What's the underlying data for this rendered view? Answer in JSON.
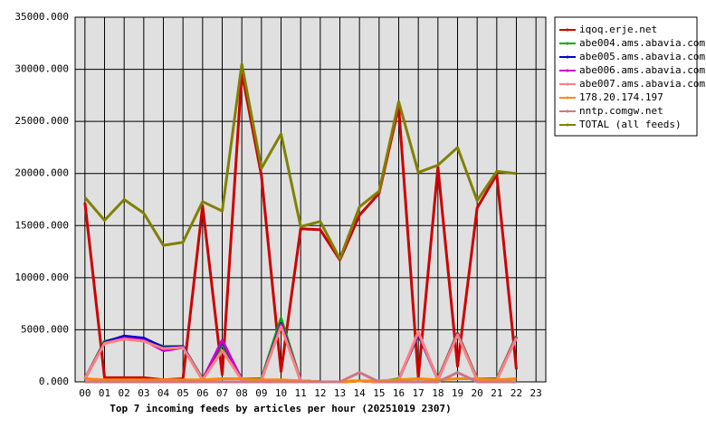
{
  "chart_data": {
    "type": "line",
    "title": "Top 7 incoming feeds by articles per hour (20251019 2307)",
    "categories": [
      "00",
      "01",
      "02",
      "03",
      "04",
      "05",
      "06",
      "07",
      "08",
      "09",
      "10",
      "11",
      "12",
      "13",
      "14",
      "15",
      "16",
      "17",
      "18",
      "19",
      "20",
      "21",
      "22",
      "23"
    ],
    "ylim": [
      0,
      35000
    ],
    "yticks": [
      {
        "value": 0,
        "label": "0.000"
      },
      {
        "value": 5000,
        "label": "5000.000"
      },
      {
        "value": 10000,
        "label": "10000.000"
      },
      {
        "value": 15000,
        "label": "15000.000"
      },
      {
        "value": 20000,
        "label": "20000.000"
      },
      {
        "value": 25000,
        "label": "25000.000"
      },
      {
        "value": 30000,
        "label": "30000.000"
      },
      {
        "value": 35000,
        "label": "35000.000"
      }
    ],
    "grid": true,
    "legend": "right",
    "series": [
      {
        "name": "iqoq.erje.net",
        "color": "#cc0000",
        "values": [
          17200,
          400,
          400,
          400,
          200,
          300,
          16900,
          700,
          29700,
          19800,
          1000,
          14700,
          14600,
          11700,
          16000,
          18100,
          26400,
          400,
          20600,
          1500,
          16700,
          19900,
          1200,
          null
        ]
      },
      {
        "name": "abe004.ams.abavia.com",
        "color": "#00aa00",
        "values": [
          300,
          3900,
          4300,
          4100,
          3400,
          3400,
          300,
          3600,
          300,
          300,
          6100,
          100,
          0,
          0,
          100,
          0,
          300,
          4500,
          300,
          4700,
          300,
          300,
          4400,
          null
        ]
      },
      {
        "name": "abe005.ams.abavia.com",
        "color": "#0000cc",
        "values": [
          300,
          3800,
          4400,
          4200,
          3300,
          3400,
          200,
          3900,
          200,
          200,
          5600,
          100,
          0,
          0,
          100,
          0,
          200,
          4600,
          200,
          4600,
          200,
          200,
          4300,
          null
        ]
      },
      {
        "name": "abe006.ams.abavia.com",
        "color": "#cc00cc",
        "values": [
          300,
          3700,
          4200,
          4000,
          3000,
          3300,
          200,
          4000,
          200,
          200,
          5500,
          100,
          0,
          0,
          100,
          0,
          200,
          4700,
          200,
          4600,
          200,
          200,
          4300,
          null
        ]
      },
      {
        "name": "abe007.ams.abavia.com",
        "color": "#ff8080",
        "values": [
          300,
          3700,
          4100,
          3900,
          3200,
          3300,
          200,
          3000,
          200,
          200,
          5300,
          100,
          0,
          0,
          100,
          0,
          200,
          4800,
          200,
          4500,
          200,
          200,
          4200,
          null
        ]
      },
      {
        "name": "178.20.174.197",
        "color": "#ff8800",
        "values": [
          300,
          200,
          200,
          200,
          200,
          200,
          200,
          300,
          300,
          200,
          200,
          100,
          0,
          0,
          100,
          100,
          200,
          300,
          200,
          300,
          300,
          200,
          300,
          null
        ]
      },
      {
        "name": "nntp.comgw.net",
        "color": "#cc7788",
        "values": [
          0,
          0,
          0,
          0,
          0,
          0,
          0,
          0,
          0,
          0,
          0,
          0,
          0,
          0,
          900,
          0,
          0,
          0,
          0,
          900,
          0,
          0,
          0,
          null
        ]
      },
      {
        "name": "TOTAL (all feeds)",
        "color": "#808000",
        "values": [
          17700,
          15500,
          17500,
          16200,
          13100,
          13400,
          17300,
          16400,
          30500,
          20500,
          23800,
          14900,
          15400,
          11800,
          16800,
          18300,
          26900,
          20100,
          20800,
          22500,
          17400,
          20200,
          20000,
          null
        ]
      }
    ]
  }
}
